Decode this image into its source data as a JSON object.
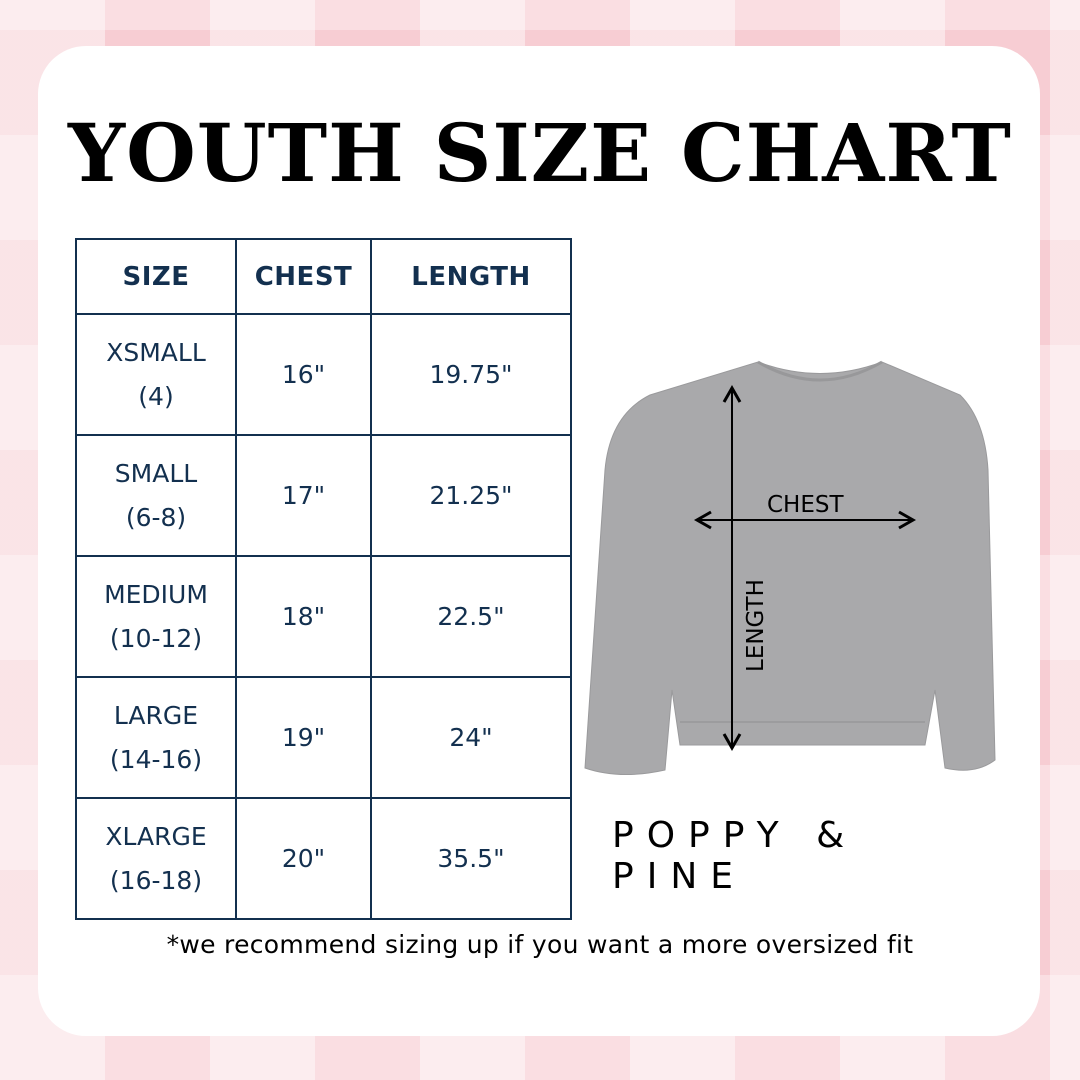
{
  "title": "YOUTH SIZE CHART",
  "table": {
    "headers": [
      "SIZE",
      "CHEST",
      "LENGTH"
    ],
    "rows": [
      {
        "size": "XSMALL",
        "range": "(4)",
        "chest": "16\"",
        "length": "19.75\""
      },
      {
        "size": "SMALL",
        "range": "(6-8)",
        "chest": "17\"",
        "length": "21.25\""
      },
      {
        "size": "MEDIUM",
        "range": "(10-12)",
        "chest": "18\"",
        "length": "22.5\""
      },
      {
        "size": "LARGE",
        "range": "(14-16)",
        "chest": "19\"",
        "length": "24\""
      },
      {
        "size": "XLARGE",
        "range": "(16-18)",
        "chest": "20\"",
        "length": "35.5\""
      }
    ]
  },
  "diagram": {
    "chest_label": "CHEST",
    "length_label": "LENGTH",
    "garment_color": "#a9a9ab"
  },
  "brand": "POPPY & PINE",
  "note": "*we recommend sizing up if you want a more oversized fit",
  "colors": {
    "table": "#13304f",
    "background": "#f7cdd3"
  }
}
